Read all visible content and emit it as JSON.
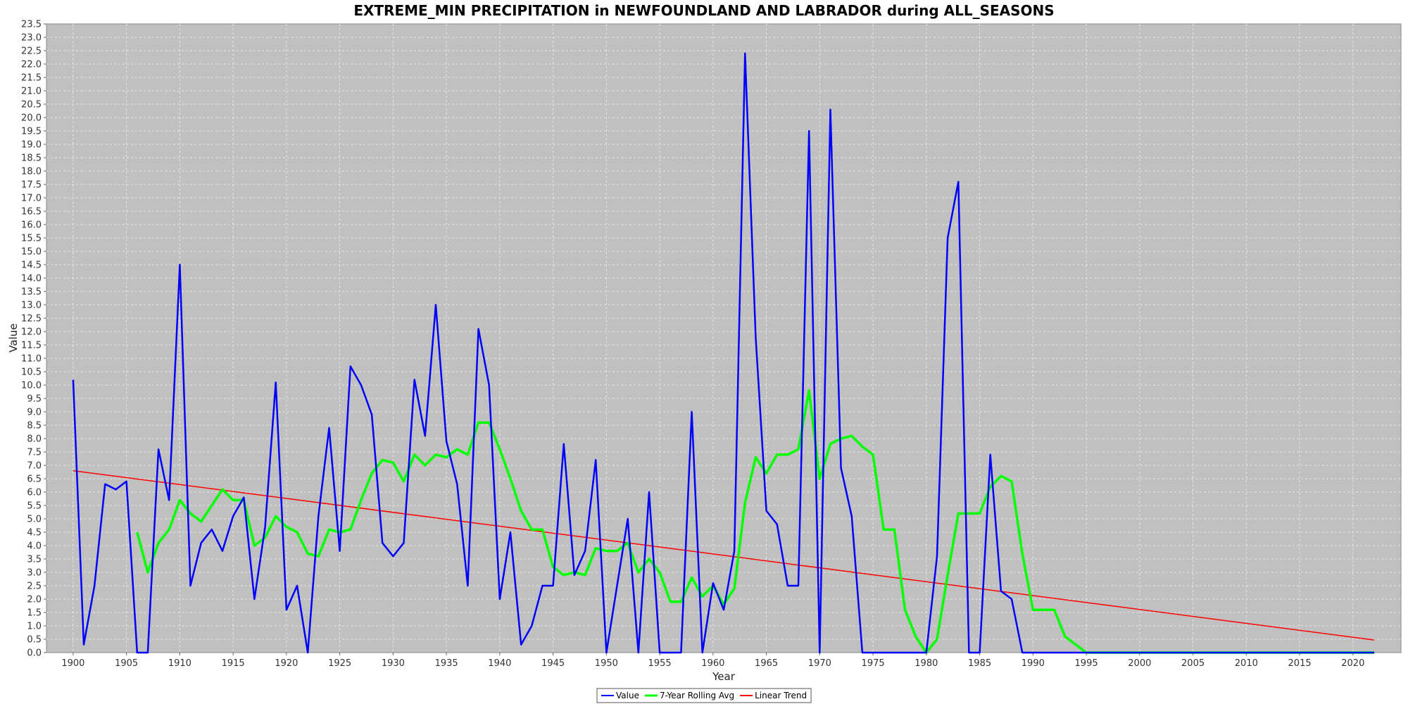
{
  "chart_data": {
    "type": "line",
    "title": "EXTREME_MIN PRECIPITATION in NEWFOUNDLAND AND LABRADOR during ALL_SEASONS",
    "xlabel": "Year",
    "ylabel": "Value",
    "xlim": [
      1897.5,
      2024.5
    ],
    "ylim": [
      0,
      23.5
    ],
    "x_ticks": [
      1900,
      1905,
      1910,
      1915,
      1920,
      1925,
      1930,
      1935,
      1940,
      1945,
      1950,
      1955,
      1960,
      1965,
      1970,
      1975,
      1980,
      1985,
      1990,
      1995,
      2000,
      2005,
      2010,
      2015,
      2020
    ],
    "y_tick_step": 0.5,
    "grid": true,
    "legend_position": "bottom-center",
    "background": "#c0c0c0",
    "series": [
      {
        "name": "Value",
        "color": "#0000ff",
        "x": [
          1900,
          1901,
          1902,
          1903,
          1904,
          1905,
          1906,
          1907,
          1908,
          1909,
          1910,
          1911,
          1912,
          1913,
          1914,
          1915,
          1916,
          1917,
          1918,
          1919,
          1920,
          1921,
          1922,
          1923,
          1924,
          1925,
          1926,
          1927,
          1928,
          1929,
          1930,
          1931,
          1932,
          1933,
          1934,
          1935,
          1936,
          1937,
          1938,
          1939,
          1940,
          1941,
          1942,
          1943,
          1944,
          1945,
          1946,
          1947,
          1948,
          1949,
          1950,
          1951,
          1952,
          1953,
          1954,
          1955,
          1956,
          1957,
          1958,
          1959,
          1960,
          1961,
          1962,
          1963,
          1964,
          1965,
          1966,
          1967,
          1968,
          1969,
          1970,
          1971,
          1972,
          1973,
          1974,
          1975,
          1976,
          1977,
          1978,
          1979,
          1980,
          1981,
          1982,
          1983,
          1984,
          1985,
          1986,
          1987,
          1988,
          1989,
          1990,
          1991,
          1992,
          1993,
          1994,
          1995,
          1996,
          1997,
          1998,
          1999,
          2000,
          2001,
          2002,
          2003,
          2004,
          2005,
          2006,
          2007,
          2008,
          2009,
          2010,
          2011,
          2012,
          2013,
          2014,
          2015,
          2016,
          2017,
          2018,
          2019,
          2020,
          2021,
          2022
        ],
        "values": [
          10.2,
          0.3,
          2.5,
          6.3,
          6.1,
          6.4,
          0,
          0,
          7.6,
          5.7,
          14.5,
          2.5,
          4.1,
          4.6,
          3.8,
          5.1,
          5.8,
          2.0,
          4.7,
          10.1,
          1.6,
          2.5,
          0,
          5.1,
          8.4,
          3.8,
          10.7,
          10.0,
          8.9,
          4.1,
          3.6,
          4.1,
          10.2,
          8.1,
          13.0,
          7.9,
          6.3,
          2.5,
          12.1,
          10.0,
          2.0,
          4.5,
          0.3,
          1.0,
          2.5,
          2.5,
          7.8,
          2.9,
          3.8,
          7.2,
          0,
          2.5,
          5.0,
          0,
          6.0,
          0,
          0,
          0,
          9.0,
          0,
          2.6,
          1.6,
          3.8,
          22.4,
          11.8,
          5.3,
          4.8,
          2.5,
          2.5,
          19.5,
          0,
          20.3,
          6.9,
          5.1,
          0,
          0,
          0,
          0,
          0,
          0,
          0,
          3.6,
          15.5,
          17.6,
          0,
          0,
          7.4,
          2.3,
          2.0,
          0,
          0,
          0,
          0,
          0,
          0,
          0,
          0,
          0,
          0,
          0,
          0,
          0,
          0,
          0,
          0,
          0,
          0,
          0,
          0,
          0,
          0,
          0,
          0,
          0,
          0,
          0,
          0,
          0,
          0,
          0,
          0,
          0,
          0
        ]
      },
      {
        "name": "7-Year Rolling Avg",
        "color": "#00ff00",
        "x": [
          1906,
          1907,
          1908,
          1909,
          1910,
          1911,
          1912,
          1913,
          1914,
          1915,
          1916,
          1917,
          1918,
          1919,
          1920,
          1921,
          1922,
          1923,
          1924,
          1925,
          1926,
          1927,
          1928,
          1929,
          1930,
          1931,
          1932,
          1933,
          1934,
          1935,
          1936,
          1937,
          1938,
          1939,
          1940,
          1941,
          1942,
          1943,
          1944,
          1945,
          1946,
          1947,
          1948,
          1949,
          1950,
          1951,
          1952,
          1953,
          1954,
          1955,
          1956,
          1957,
          1958,
          1959,
          1960,
          1961,
          1962,
          1963,
          1964,
          1965,
          1966,
          1967,
          1968,
          1969,
          1970,
          1971,
          1972,
          1973,
          1974,
          1975,
          1976,
          1977,
          1978,
          1979,
          1980,
          1981,
          1982,
          1983,
          1984,
          1985,
          1986,
          1987,
          1988,
          1989,
          1990,
          1991,
          1992,
          1993,
          1994,
          1995,
          1996,
          1997,
          1998,
          1999,
          2000,
          2001,
          2002,
          2003,
          2004,
          2005,
          2006,
          2007,
          2008,
          2009,
          2010,
          2011,
          2012,
          2013,
          2014,
          2015,
          2016,
          2017,
          2018,
          2019,
          2020,
          2021,
          2022
        ],
        "values": [
          4.5,
          3.0,
          4.1,
          4.6,
          5.7,
          5.2,
          4.9,
          5.5,
          6.1,
          5.7,
          5.7,
          4.0,
          4.3,
          5.1,
          4.7,
          4.5,
          3.7,
          3.6,
          4.6,
          4.5,
          4.6,
          5.7,
          6.7,
          7.2,
          7.1,
          6.4,
          7.4,
          7.0,
          7.4,
          7.3,
          7.6,
          7.4,
          8.6,
          8.6,
          7.6,
          6.5,
          5.3,
          4.6,
          4.6,
          3.2,
          2.9,
          3.0,
          2.9,
          3.9,
          3.8,
          3.8,
          4.1,
          3.0,
          3.5,
          3.0,
          1.9,
          1.9,
          2.8,
          2.1,
          2.5,
          1.8,
          2.4,
          5.6,
          7.3,
          6.7,
          7.4,
          7.4,
          7.6,
          9.8,
          6.5,
          7.8,
          8.0,
          8.1,
          7.7,
          7.4,
          4.6,
          4.6,
          1.6,
          0.6,
          0,
          0.5,
          2.9,
          5.2,
          5.2,
          5.2,
          6.2,
          6.6,
          6.4,
          3.7,
          1.6,
          1.6,
          1.6,
          0.6,
          0.3,
          0,
          0,
          0,
          0,
          0,
          0,
          0,
          0,
          0,
          0,
          0,
          0,
          0,
          0,
          0,
          0,
          0,
          0,
          0,
          0,
          0,
          0,
          0,
          0,
          0,
          0,
          0,
          0
        ]
      },
      {
        "name": "Linear Trend",
        "color": "#ff0000",
        "x": [
          1900,
          2022
        ],
        "values": [
          6.8,
          0.47
        ]
      }
    ]
  }
}
